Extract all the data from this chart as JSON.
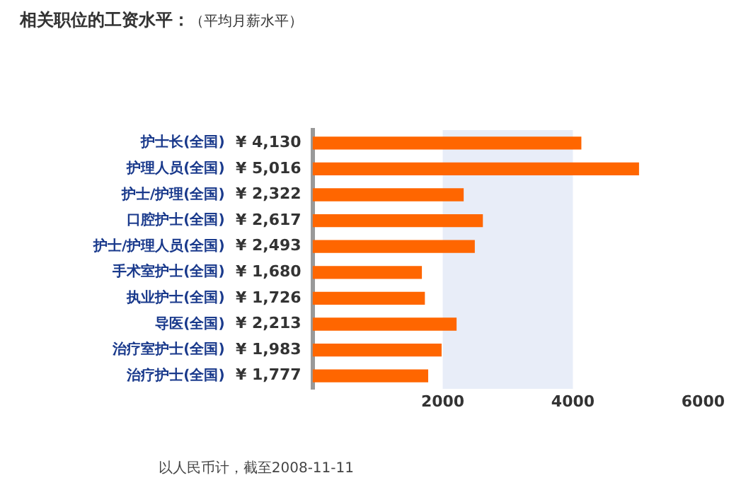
{
  "chart_data": {
    "type": "bar",
    "orientation": "horizontal",
    "title": "相关职位的工资水平：",
    "subtitle": "（平均月薪水平）",
    "categories": [
      "护士长(全国)",
      "护理人员(全国)",
      "护士/护理(全国)",
      "口腔护士(全国)",
      "护士/护理人员(全国)",
      "手术室护士(全国)",
      "执业护士(全国)",
      "导医(全国)",
      "治疗室护士(全国)",
      "治疗护士(全国)"
    ],
    "values": [
      4130,
      5016,
      2322,
      2617,
      2493,
      1680,
      1726,
      2213,
      1983,
      1777
    ],
    "value_labels": [
      "¥ 4,130",
      "¥ 5,016",
      "¥ 2,322",
      "¥ 2,617",
      "¥ 2,493",
      "¥ 1,680",
      "¥ 1,726",
      "¥ 2,213",
      "¥ 1,983",
      "¥ 1,777"
    ],
    "color": "#ff6600",
    "xlim": [
      0,
      6000
    ],
    "xticks": [
      2000,
      4000,
      6000
    ],
    "bands": [
      {
        "axis": "x",
        "from": 2000,
        "to": 4000,
        "color": "#e8edf8"
      }
    ],
    "grid": false,
    "legend": false,
    "annotations": [
      "以人民币计，截至2008-11-11"
    ]
  }
}
